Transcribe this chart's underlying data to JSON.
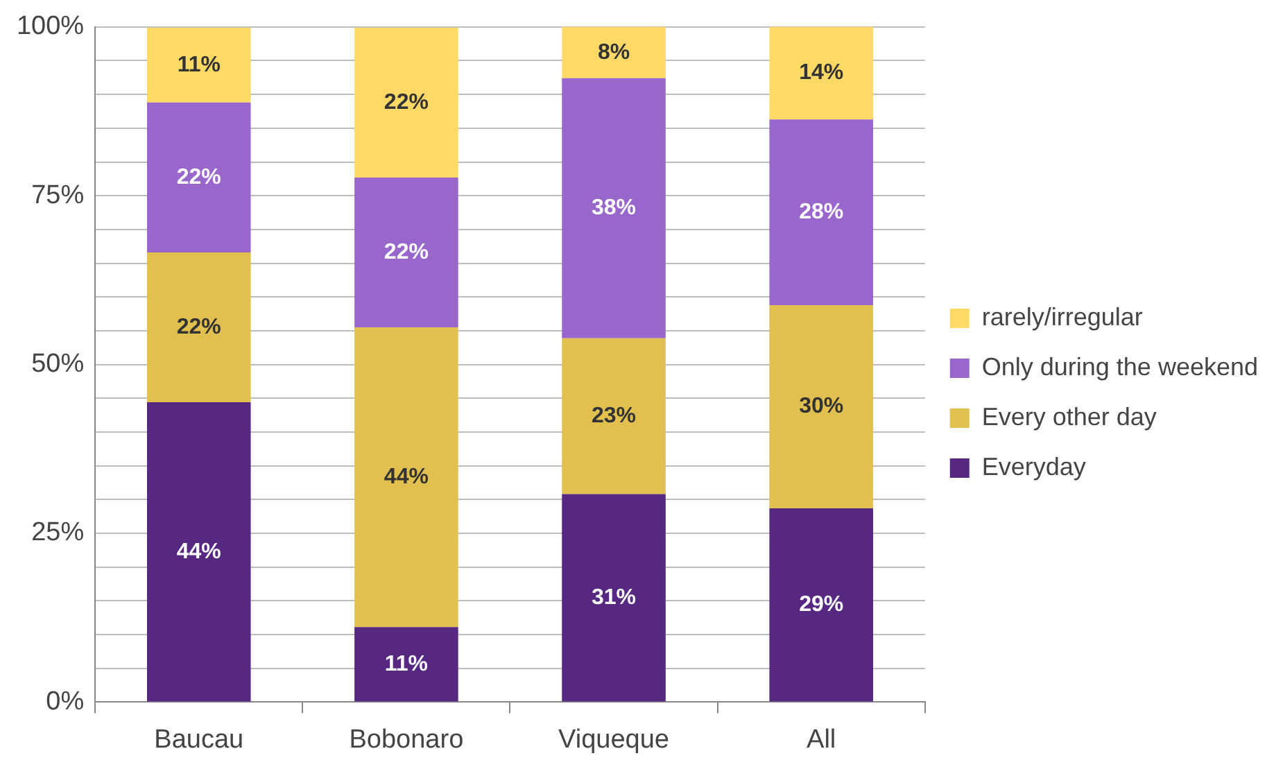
{
  "chart_data": {
    "type": "bar",
    "stacked": true,
    "categories": [
      "Baucau",
      "Bobonaro",
      "Viqueque",
      "All"
    ],
    "series": [
      {
        "name": "Everyday",
        "color": "#562882",
        "values": [
          44.4,
          11.1,
          30.8,
          28.7
        ],
        "value_labels": [
          "44%",
          "11%",
          "31%",
          "29%"
        ]
      },
      {
        "name": "Every other day",
        "color": "#e2c050",
        "values": [
          22.2,
          44.4,
          23.1,
          30.1
        ],
        "value_labels": [
          "22%",
          "44%",
          "23%",
          "30%"
        ]
      },
      {
        "name": "Only during the weekend",
        "color": "#9966cc",
        "values": [
          22.2,
          22.2,
          38.5,
          27.5
        ],
        "value_labels": [
          "22%",
          "22%",
          "38%",
          "28%"
        ]
      },
      {
        "name": "rarely/irregular",
        "color": "#ffd966",
        "values": [
          11.1,
          22.2,
          7.6,
          13.7
        ],
        "value_labels": [
          "11%",
          "22%",
          "8%",
          "14%"
        ]
      }
    ],
    "ylim": [
      0,
      100
    ],
    "yticks": [
      {
        "value": 0,
        "label": "0%"
      },
      {
        "value": 5,
        "label": null
      },
      {
        "value": 10,
        "label": null
      },
      {
        "value": 15,
        "label": null
      },
      {
        "value": 20,
        "label": null
      },
      {
        "value": 25,
        "label": "25%"
      },
      {
        "value": 30,
        "label": null
      },
      {
        "value": 35,
        "label": null
      },
      {
        "value": 40,
        "label": null
      },
      {
        "value": 45,
        "label": null
      },
      {
        "value": 50,
        "label": "50%"
      },
      {
        "value": 55,
        "label": null
      },
      {
        "value": 60,
        "label": null
      },
      {
        "value": 65,
        "label": null
      },
      {
        "value": 70,
        "label": null
      },
      {
        "value": 75,
        "label": "75%"
      },
      {
        "value": 80,
        "label": null
      },
      {
        "value": 85,
        "label": null
      },
      {
        "value": 90,
        "label": null
      },
      {
        "value": 95,
        "label": null
      },
      {
        "value": 100,
        "label": "100%"
      }
    ],
    "grid": "y",
    "legend": "right"
  }
}
